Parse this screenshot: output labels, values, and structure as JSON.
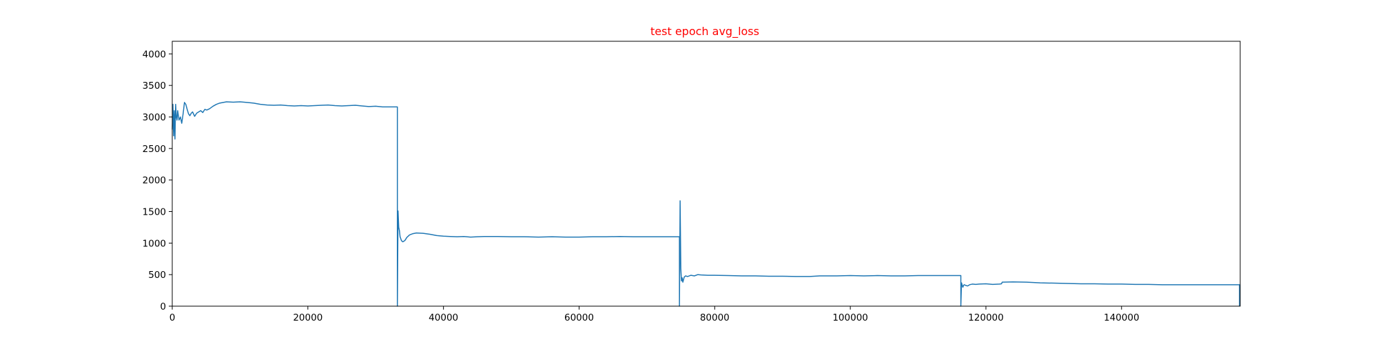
{
  "chart_data": {
    "type": "line",
    "title": "test epoch avg_loss",
    "title_color": "#ff0000",
    "line_color": "#1f77b4",
    "xlabel": "",
    "ylabel": "",
    "xlim": [
      0,
      157500
    ],
    "ylim": [
      0,
      4200
    ],
    "grid": false,
    "xticks": [
      0,
      20000,
      40000,
      60000,
      80000,
      100000,
      120000,
      140000
    ],
    "xtick_labels": [
      "0",
      "20000",
      "40000",
      "60000",
      "80000",
      "100000",
      "120000",
      "140000"
    ],
    "yticks": [
      0,
      500,
      1000,
      1500,
      2000,
      2500,
      3000,
      3500,
      4000
    ],
    "ytick_labels": [
      "0",
      "500",
      "1000",
      "1500",
      "2000",
      "2500",
      "3000",
      "3500",
      "4000"
    ],
    "series": [
      {
        "x": [
          0,
          100,
          200,
          300,
          400,
          500,
          600,
          700,
          800,
          1000,
          1200,
          1400,
          1600,
          1800,
          2000,
          2200,
          2400,
          2600,
          2800,
          3000,
          3300,
          3600,
          3900,
          4200,
          4500,
          4800,
          5100,
          5500,
          6000,
          6500,
          7000,
          8000,
          9000,
          10000,
          11000,
          12000,
          13000,
          14000,
          15000,
          16000,
          17000,
          18000,
          19000,
          20000,
          21000,
          22000,
          23000,
          24000,
          25000,
          26000,
          27000,
          28000,
          29000,
          30000,
          31000,
          32000,
          33200,
          33200,
          33300,
          33400,
          33500,
          33600,
          33800,
          34000,
          34300,
          34600,
          35000,
          35500,
          36000,
          37000,
          38000,
          39000,
          40000,
          41000,
          42000,
          43000,
          44000,
          45000,
          46000,
          48000,
          50000,
          52000,
          54000,
          56000,
          58000,
          60000,
          62000,
          64000,
          66000,
          68000,
          70000,
          72000,
          74800,
          74800,
          74900,
          75000,
          75100,
          75200,
          75300,
          75500,
          75700,
          76000,
          76500,
          77000,
          77500,
          78000,
          79000,
          80000,
          82000,
          84000,
          86000,
          88000,
          90000,
          92000,
          94000,
          95500,
          96000,
          98000,
          100000,
          102000,
          104000,
          106000,
          108000,
          110000,
          112000,
          114000,
          116300,
          116300,
          116400,
          116500,
          116600,
          116700,
          116800,
          117000,
          117300,
          117600,
          118000,
          118500,
          119000,
          120000,
          121000,
          122000,
          122300,
          122400,
          124000,
          126000,
          128000,
          130000,
          132000,
          134000,
          136000,
          138000,
          140000,
          142000,
          144000,
          146000,
          148000,
          150000,
          152000,
          154000,
          156000,
          157400,
          157400
        ],
        "y": [
          2800,
          3200,
          2700,
          3100,
          2650,
          3200,
          3000,
          2950,
          3100,
          2950,
          3000,
          2900,
          3050,
          3230,
          3200,
          3120,
          3050,
          3020,
          3060,
          3080,
          3010,
          3060,
          3080,
          3100,
          3070,
          3120,
          3110,
          3130,
          3170,
          3200,
          3220,
          3240,
          3235,
          3240,
          3230,
          3220,
          3200,
          3190,
          3185,
          3190,
          3180,
          3175,
          3180,
          3175,
          3180,
          3185,
          3190,
          3180,
          3175,
          3180,
          3185,
          3175,
          3165,
          3170,
          3160,
          3160,
          3160,
          0,
          1510,
          1250,
          1200,
          1100,
          1040,
          1020,
          1040,
          1090,
          1130,
          1150,
          1160,
          1155,
          1140,
          1120,
          1110,
          1105,
          1100,
          1105,
          1095,
          1100,
          1105,
          1105,
          1100,
          1100,
          1095,
          1100,
          1095,
          1095,
          1100,
          1100,
          1105,
          1100,
          1100,
          1100,
          1100,
          0,
          1670,
          600,
          400,
          450,
          380,
          460,
          480,
          470,
          490,
          480,
          500,
          495,
          490,
          490,
          485,
          480,
          480,
          475,
          475,
          470,
          470,
          480,
          480,
          480,
          485,
          480,
          485,
          480,
          480,
          485,
          485,
          485,
          485,
          0,
          370,
          330,
          300,
          330,
          340,
          330,
          320,
          340,
          350,
          345,
          350,
          355,
          345,
          350,
          355,
          380,
          385,
          380,
          370,
          365,
          360,
          355,
          355,
          350,
          350,
          345,
          345,
          340,
          340,
          340,
          340,
          340,
          340,
          340,
          0
        ]
      }
    ]
  }
}
